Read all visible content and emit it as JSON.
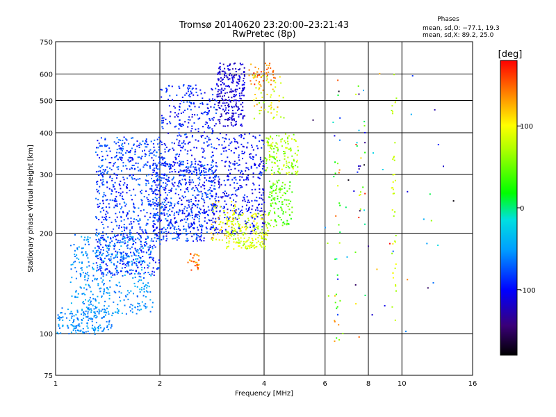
{
  "chart_data": {
    "type": "scatter",
    "title": "Tromsø 20140620 23:20:00–23:21:43",
    "subtitle": "RwPretec (8p)",
    "xlabel": "Frequency [MHz]",
    "ylabel": "Stationary phase Virtual Height [km]",
    "x_scale": "log",
    "y_scale": "log",
    "xlim": [
      1,
      16
    ],
    "ylim": [
      75,
      750
    ],
    "x_ticks": [
      {
        "value": 1,
        "label": "1"
      },
      {
        "value": 2,
        "label": "2"
      },
      {
        "value": 4,
        "label": "4"
      },
      {
        "value": 6,
        "label": "6"
      },
      {
        "value": 8,
        "label": "8"
      },
      {
        "value": 10,
        "label": "10"
      },
      {
        "value": 16,
        "label": "16"
      }
    ],
    "y_ticks": [
      {
        "value": 75,
        "label": "75"
      },
      {
        "value": 100,
        "label": "100"
      },
      {
        "value": 200,
        "label": "200"
      },
      {
        "value": 300,
        "label": "300"
      },
      {
        "value": 400,
        "label": "400"
      },
      {
        "value": 500,
        "label": "500"
      },
      {
        "value": 600,
        "label": "600"
      },
      {
        "value": 750,
        "label": "750"
      }
    ],
    "grid": true,
    "stats": {
      "heading": "Phases",
      "line1": "mean, sd,O: −77.1, 19.3",
      "line2": "mean, sd,X:  89.2, 25.0"
    },
    "colorbar": {
      "label": "[deg]",
      "min": -180,
      "max": 180,
      "ticks": [
        {
          "value": 100,
          "label": "100"
        },
        {
          "value": 0,
          "label": "0"
        },
        {
          "value": -100,
          "label": "-100"
        }
      ],
      "colormap": "rainbow"
    },
    "clusters": [
      {
        "f": [
          1.0,
          1.45
        ],
        "h": [
          100,
          120
        ],
        "p": [
          -70,
          -40
        ],
        "n": 160
      },
      {
        "f": [
          1.1,
          1.9
        ],
        "h": [
          115,
          200
        ],
        "p": [
          -75,
          -35
        ],
        "n": 420
      },
      {
        "f": [
          1.3,
          2.0
        ],
        "h": [
          150,
          390
        ],
        "p": [
          -110,
          -60
        ],
        "n": 750
      },
      {
        "f": [
          1.9,
          2.9
        ],
        "h": [
          190,
          330
        ],
        "p": [
          -115,
          -60
        ],
        "n": 600
      },
      {
        "f": [
          2.0,
          2.9
        ],
        "h": [
          300,
          560
        ],
        "p": [
          -115,
          -70
        ],
        "n": 320
      },
      {
        "f": [
          2.9,
          3.5
        ],
        "h": [
          420,
          650
        ],
        "p": [
          -130,
          -100
        ],
        "n": 260
      },
      {
        "f": [
          2.8,
          4.0
        ],
        "h": [
          200,
          400
        ],
        "p": [
          -120,
          -80
        ],
        "n": 380
      },
      {
        "f": [
          3.6,
          4.3
        ],
        "h": [
          560,
          650
        ],
        "p": [
          120,
          170
        ],
        "n": 45
      },
      {
        "f": [
          3.7,
          4.6
        ],
        "h": [
          440,
          600
        ],
        "p": [
          60,
          140
        ],
        "n": 60
      },
      {
        "f": [
          4.0,
          5.0
        ],
        "h": [
          300,
          400
        ],
        "p": [
          40,
          100
        ],
        "n": 140
      },
      {
        "f": [
          4.1,
          4.8
        ],
        "h": [
          210,
          290
        ],
        "p": [
          20,
          70
        ],
        "n": 110
      },
      {
        "f": [
          3.1,
          4.1
        ],
        "h": [
          180,
          230
        ],
        "p": [
          60,
          110
        ],
        "n": 200
      },
      {
        "f": [
          2.8,
          3.3
        ],
        "h": [
          190,
          250
        ],
        "p": [
          70,
          130
        ],
        "n": 60
      },
      {
        "f": [
          2.4,
          2.6
        ],
        "h": [
          155,
          175
        ],
        "p": [
          120,
          170
        ],
        "n": 28
      },
      {
        "f": [
          6.3,
          6.6
        ],
        "h": [
          95,
          600
        ],
        "p": [
          -180,
          180
        ],
        "n": 35
      },
      {
        "f": [
          7.3,
          7.8
        ],
        "h": [
          95,
          650
        ],
        "p": [
          -180,
          180
        ],
        "n": 30
      },
      {
        "f": [
          9.3,
          9.6
        ],
        "h": [
          110,
          610
        ],
        "p": [
          60,
          110
        ],
        "n": 40
      },
      {
        "f": [
          5.2,
          14.5
        ],
        "h": [
          100,
          620
        ],
        "p": [
          -180,
          180
        ],
        "n": 40
      }
    ]
  }
}
